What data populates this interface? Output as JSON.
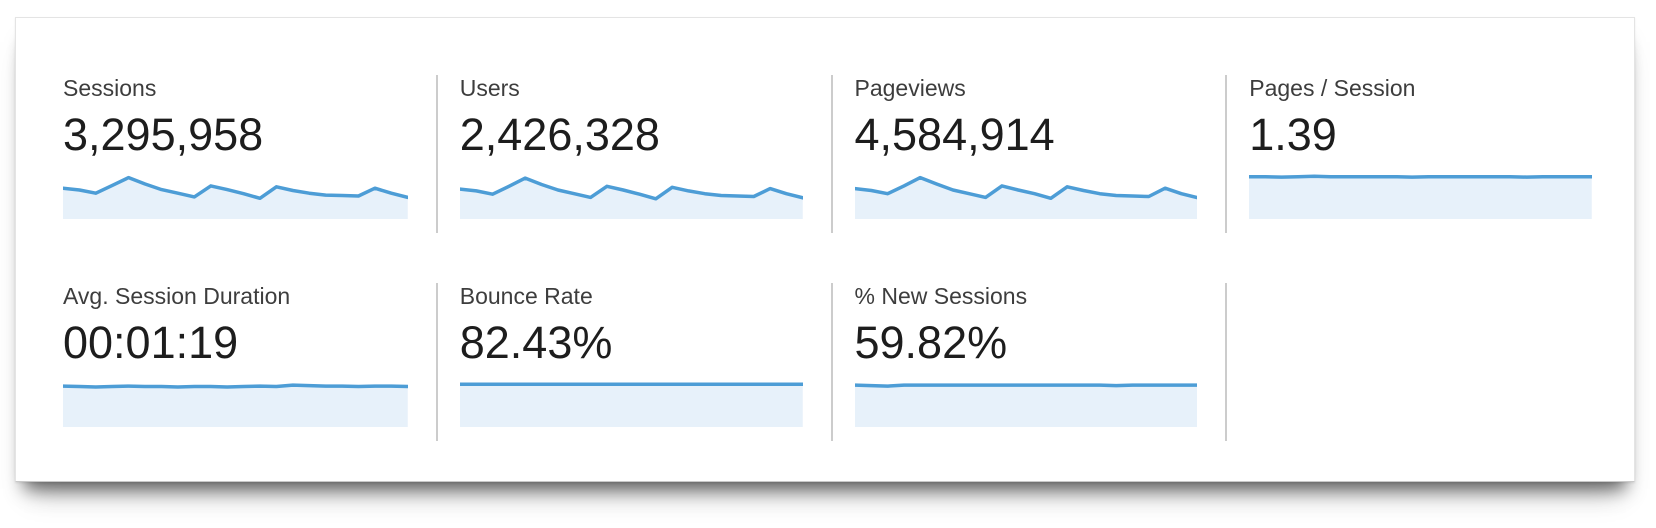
{
  "panel": {
    "description": "analytics overview scorecards"
  },
  "metrics": [
    {
      "label": "Sessions",
      "value": "3,295,958"
    },
    {
      "label": "Users",
      "value": "2,426,328"
    },
    {
      "label": "Pageviews",
      "value": "4,584,914"
    },
    {
      "label": "Pages / Session",
      "value": "1.39"
    },
    {
      "label": "Avg. Session Duration",
      "value": "00:01:19"
    },
    {
      "label": "Bounce Rate",
      "value": "82.43%"
    },
    {
      "label": "% New Sessions",
      "value": "59.82%"
    }
  ],
  "colors": {
    "spark_line": "#4d9dd6",
    "spark_fill": "#e7f1fa",
    "divider": "#cccccc",
    "label_text": "#3d3d3d",
    "value_text": "#1d1d1d",
    "card_background": "#ffffff"
  },
  "chart_data": [
    {
      "metric": "Sessions",
      "type": "area",
      "relative_values": [
        0.67,
        0.63,
        0.56,
        0.73,
        0.9,
        0.76,
        0.64,
        0.56,
        0.48,
        0.72,
        0.64,
        0.55,
        0.45,
        0.7,
        0.62,
        0.56,
        0.52,
        0.51,
        0.5,
        0.67,
        0.56,
        0.47
      ]
    },
    {
      "metric": "Users",
      "type": "area",
      "relative_values": [
        0.65,
        0.61,
        0.54,
        0.71,
        0.89,
        0.75,
        0.63,
        0.55,
        0.47,
        0.71,
        0.63,
        0.54,
        0.44,
        0.69,
        0.61,
        0.55,
        0.51,
        0.5,
        0.49,
        0.66,
        0.55,
        0.46
      ]
    },
    {
      "metric": "Pageviews",
      "type": "area",
      "relative_values": [
        0.66,
        0.62,
        0.55,
        0.72,
        0.9,
        0.76,
        0.63,
        0.55,
        0.47,
        0.72,
        0.63,
        0.55,
        0.45,
        0.7,
        0.62,
        0.55,
        0.51,
        0.5,
        0.49,
        0.67,
        0.55,
        0.46
      ]
    },
    {
      "metric": "Pages / Session",
      "type": "area",
      "relative_values": [
        0.92,
        0.92,
        0.91,
        0.92,
        0.93,
        0.92,
        0.92,
        0.92,
        0.92,
        0.92,
        0.91,
        0.92,
        0.92,
        0.92,
        0.92,
        0.92,
        0.92,
        0.91,
        0.92,
        0.92,
        0.92,
        0.92
      ]
    },
    {
      "metric": "Avg. Session Duration",
      "type": "area",
      "relative_values": [
        0.89,
        0.88,
        0.87,
        0.88,
        0.89,
        0.88,
        0.88,
        0.87,
        0.88,
        0.88,
        0.87,
        0.88,
        0.89,
        0.88,
        0.91,
        0.9,
        0.89,
        0.89,
        0.88,
        0.89,
        0.89,
        0.88
      ]
    },
    {
      "metric": "Bounce Rate",
      "type": "area",
      "relative_values": [
        0.93,
        0.93,
        0.93,
        0.93,
        0.93,
        0.93,
        0.93,
        0.93,
        0.93,
        0.93,
        0.93,
        0.93,
        0.93,
        0.93,
        0.93,
        0.93,
        0.93,
        0.93,
        0.93,
        0.93,
        0.93,
        0.93
      ]
    },
    {
      "metric": "% New Sessions",
      "type": "area",
      "relative_values": [
        0.91,
        0.9,
        0.89,
        0.91,
        0.91,
        0.91,
        0.91,
        0.91,
        0.91,
        0.91,
        0.91,
        0.91,
        0.91,
        0.91,
        0.91,
        0.91,
        0.9,
        0.91,
        0.91,
        0.91,
        0.91,
        0.91
      ]
    }
  ]
}
